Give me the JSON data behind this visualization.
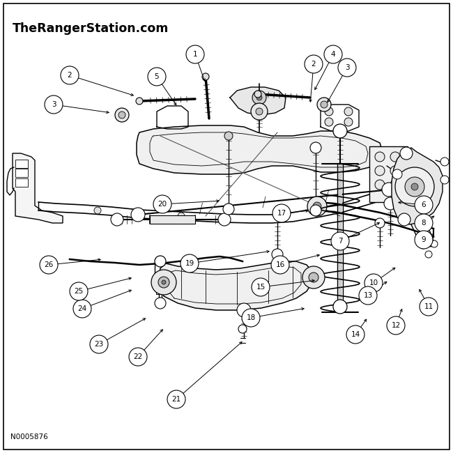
{
  "title": "TheRangerStation.com",
  "part_number": "N0005876",
  "bg": "#ffffff",
  "lc": "#000000",
  "fig_w": 6.5,
  "fig_h": 6.5,
  "dpi": 100,
  "callouts": [
    [
      1,
      0.43,
      0.9,
      0.398,
      0.868
    ],
    [
      2,
      0.155,
      0.835,
      0.22,
      0.812
    ],
    [
      2,
      0.453,
      0.858,
      0.438,
      0.84
    ],
    [
      3,
      0.118,
      0.772,
      0.168,
      0.762
    ],
    [
      3,
      0.51,
      0.852,
      0.488,
      0.838
    ],
    [
      4,
      0.478,
      0.882,
      0.462,
      0.858
    ],
    [
      5,
      0.348,
      0.83,
      0.362,
      0.812
    ],
    [
      6,
      0.935,
      0.548,
      0.892,
      0.54
    ],
    [
      7,
      0.748,
      0.468,
      0.76,
      0.488
    ],
    [
      8,
      0.92,
      0.508,
      0.888,
      0.502
    ],
    [
      9,
      0.92,
      0.47,
      0.888,
      0.472
    ],
    [
      10,
      0.825,
      0.378,
      0.845,
      0.4
    ],
    [
      11,
      0.945,
      0.322,
      0.905,
      0.338
    ],
    [
      12,
      0.875,
      0.282,
      0.872,
      0.315
    ],
    [
      13,
      0.812,
      0.348,
      0.842,
      0.362
    ],
    [
      14,
      0.785,
      0.262,
      0.808,
      0.288
    ],
    [
      15,
      0.575,
      0.368,
      0.612,
      0.368
    ],
    [
      16,
      0.618,
      0.415,
      0.648,
      0.43
    ],
    [
      17,
      0.62,
      0.53,
      0.648,
      0.53
    ],
    [
      18,
      0.555,
      0.298,
      0.572,
      0.318
    ],
    [
      19,
      0.418,
      0.418,
      0.432,
      0.445
    ],
    [
      20,
      0.358,
      0.548,
      0.372,
      0.562
    ],
    [
      21,
      0.388,
      0.118,
      0.395,
      0.15
    ],
    [
      22,
      0.305,
      0.212,
      0.328,
      0.238
    ],
    [
      23,
      0.218,
      0.24,
      0.248,
      0.268
    ],
    [
      24,
      0.182,
      0.318,
      0.215,
      0.345
    ],
    [
      25,
      0.175,
      0.358,
      0.215,
      0.375
    ],
    [
      26,
      0.108,
      0.415,
      0.162,
      0.43
    ]
  ]
}
